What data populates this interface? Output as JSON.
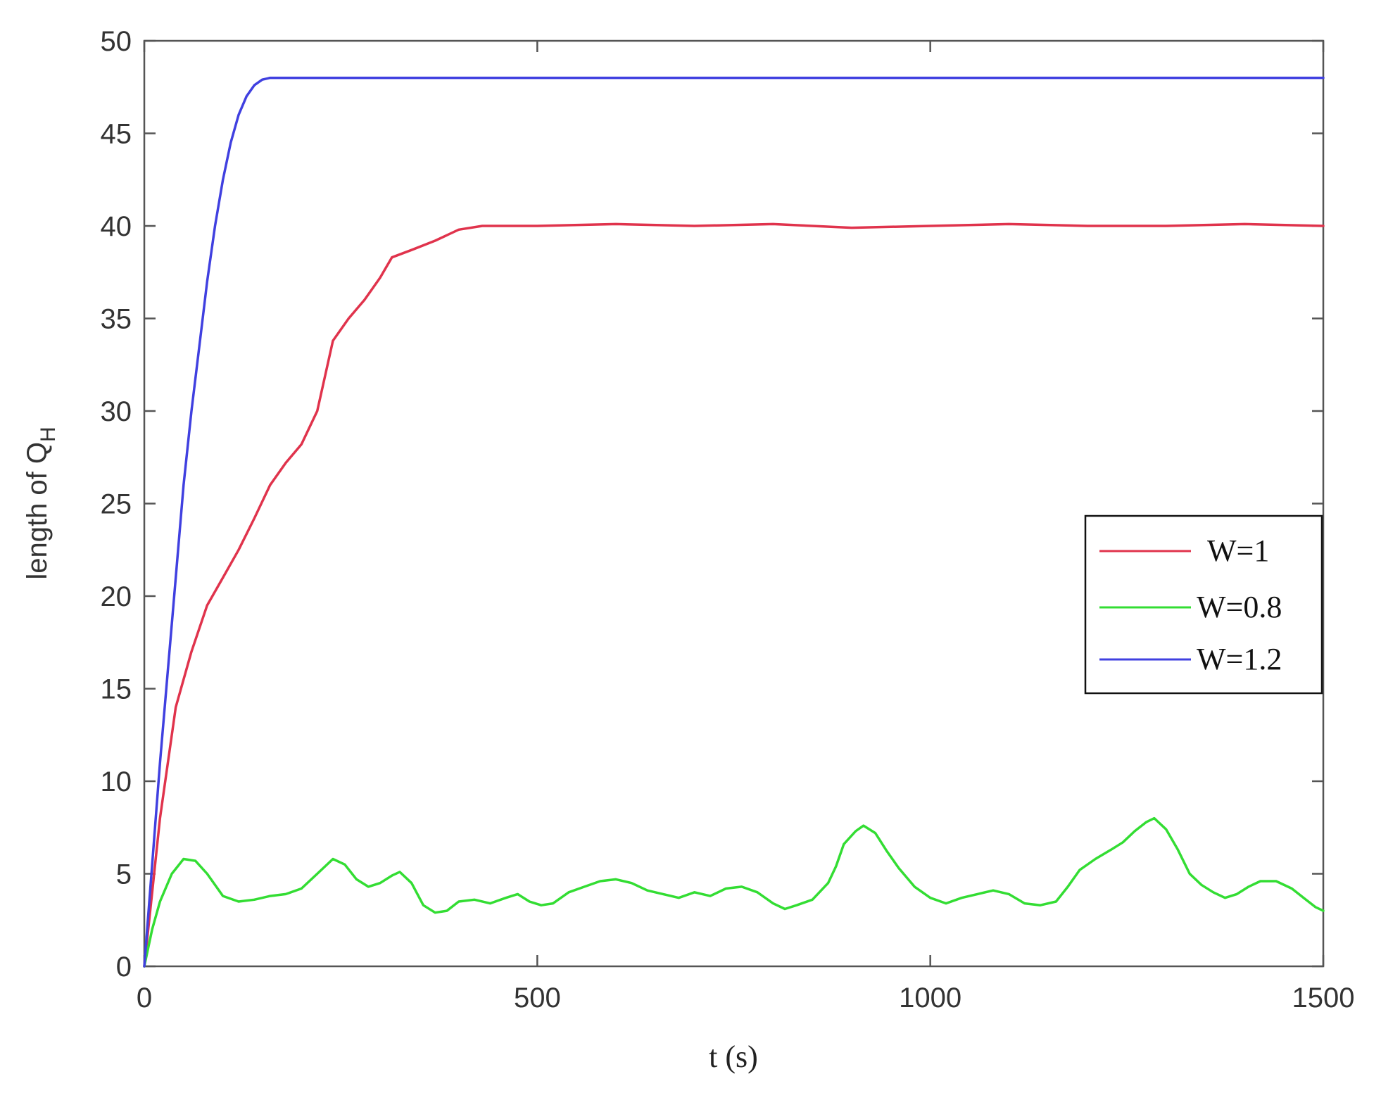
{
  "chart_data": {
    "type": "line",
    "title": "",
    "xlabel": "t (s)",
    "ylabel_main": "length of Q",
    "ylabel_sub": "H",
    "xlim": [
      0,
      1500
    ],
    "ylim": [
      0,
      50
    ],
    "xticks": [
      0,
      500,
      1000,
      1500
    ],
    "yticks": [
      0,
      5,
      10,
      15,
      20,
      25,
      30,
      35,
      40,
      45,
      50
    ],
    "grid": false,
    "legend_position": "right",
    "series": [
      {
        "name": "W=1",
        "color": "#e0334c",
        "points": [
          [
            0,
            0
          ],
          [
            10,
            4
          ],
          [
            20,
            8
          ],
          [
            40,
            14
          ],
          [
            60,
            17
          ],
          [
            80,
            19.5
          ],
          [
            100,
            21
          ],
          [
            120,
            22.5
          ],
          [
            140,
            24.2
          ],
          [
            160,
            26
          ],
          [
            180,
            27.2
          ],
          [
            200,
            28.2
          ],
          [
            220,
            30
          ],
          [
            240,
            33.8
          ],
          [
            260,
            35
          ],
          [
            280,
            36
          ],
          [
            300,
            37.2
          ],
          [
            315,
            38.3
          ],
          [
            340,
            38.7
          ],
          [
            370,
            39.2
          ],
          [
            400,
            39.8
          ],
          [
            430,
            40
          ],
          [
            500,
            40
          ],
          [
            600,
            40.1
          ],
          [
            700,
            40
          ],
          [
            800,
            40.1
          ],
          [
            900,
            39.9
          ],
          [
            1000,
            40
          ],
          [
            1100,
            40.1
          ],
          [
            1200,
            40
          ],
          [
            1300,
            40
          ],
          [
            1400,
            40.1
          ],
          [
            1500,
            40
          ]
        ]
      },
      {
        "name": "W=0.8",
        "color": "#33dd33",
        "points": [
          [
            0,
            0
          ],
          [
            10,
            2
          ],
          [
            20,
            3.5
          ],
          [
            35,
            5
          ],
          [
            50,
            5.8
          ],
          [
            65,
            5.7
          ],
          [
            80,
            5
          ],
          [
            100,
            3.8
          ],
          [
            120,
            3.5
          ],
          [
            140,
            3.6
          ],
          [
            160,
            3.8
          ],
          [
            180,
            3.9
          ],
          [
            200,
            4.2
          ],
          [
            220,
            5
          ],
          [
            240,
            5.8
          ],
          [
            255,
            5.5
          ],
          [
            270,
            4.7
          ],
          [
            285,
            4.3
          ],
          [
            300,
            4.5
          ],
          [
            315,
            4.9
          ],
          [
            325,
            5.1
          ],
          [
            340,
            4.5
          ],
          [
            355,
            3.3
          ],
          [
            370,
            2.9
          ],
          [
            385,
            3
          ],
          [
            400,
            3.5
          ],
          [
            420,
            3.6
          ],
          [
            440,
            3.4
          ],
          [
            460,
            3.7
          ],
          [
            475,
            3.9
          ],
          [
            490,
            3.5
          ],
          [
            505,
            3.3
          ],
          [
            520,
            3.4
          ],
          [
            540,
            4
          ],
          [
            560,
            4.3
          ],
          [
            580,
            4.6
          ],
          [
            600,
            4.7
          ],
          [
            620,
            4.5
          ],
          [
            640,
            4.1
          ],
          [
            660,
            3.9
          ],
          [
            680,
            3.7
          ],
          [
            700,
            4
          ],
          [
            720,
            3.8
          ],
          [
            740,
            4.2
          ],
          [
            760,
            4.3
          ],
          [
            780,
            4
          ],
          [
            800,
            3.4
          ],
          [
            815,
            3.1
          ],
          [
            830,
            3.3
          ],
          [
            850,
            3.6
          ],
          [
            870,
            4.5
          ],
          [
            880,
            5.4
          ],
          [
            890,
            6.6
          ],
          [
            905,
            7.3
          ],
          [
            915,
            7.6
          ],
          [
            930,
            7.2
          ],
          [
            945,
            6.2
          ],
          [
            960,
            5.3
          ],
          [
            980,
            4.3
          ],
          [
            1000,
            3.7
          ],
          [
            1020,
            3.4
          ],
          [
            1040,
            3.7
          ],
          [
            1060,
            3.9
          ],
          [
            1080,
            4.1
          ],
          [
            1100,
            3.9
          ],
          [
            1120,
            3.4
          ],
          [
            1140,
            3.3
          ],
          [
            1160,
            3.5
          ],
          [
            1175,
            4.3
          ],
          [
            1190,
            5.2
          ],
          [
            1210,
            5.8
          ],
          [
            1230,
            6.3
          ],
          [
            1245,
            6.7
          ],
          [
            1260,
            7.3
          ],
          [
            1275,
            7.8
          ],
          [
            1285,
            8
          ],
          [
            1300,
            7.4
          ],
          [
            1315,
            6.3
          ],
          [
            1330,
            5
          ],
          [
            1345,
            4.4
          ],
          [
            1360,
            4
          ],
          [
            1375,
            3.7
          ],
          [
            1390,
            3.9
          ],
          [
            1405,
            4.3
          ],
          [
            1420,
            4.6
          ],
          [
            1440,
            4.6
          ],
          [
            1460,
            4.2
          ],
          [
            1475,
            3.7
          ],
          [
            1490,
            3.2
          ],
          [
            1500,
            3
          ]
        ]
      },
      {
        "name": "W=1.2",
        "color": "#4040e0",
        "points": [
          [
            0,
            0
          ],
          [
            10,
            5.5
          ],
          [
            20,
            11
          ],
          [
            30,
            16
          ],
          [
            40,
            21
          ],
          [
            50,
            26
          ],
          [
            60,
            30
          ],
          [
            70,
            33.5
          ],
          [
            80,
            37
          ],
          [
            90,
            40
          ],
          [
            100,
            42.5
          ],
          [
            110,
            44.5
          ],
          [
            120,
            46
          ],
          [
            130,
            47
          ],
          [
            140,
            47.6
          ],
          [
            150,
            47.9
          ],
          [
            160,
            48
          ],
          [
            180,
            48
          ],
          [
            300,
            48
          ],
          [
            600,
            48
          ],
          [
            900,
            48
          ],
          [
            1200,
            48
          ],
          [
            1500,
            48
          ]
        ]
      }
    ]
  }
}
